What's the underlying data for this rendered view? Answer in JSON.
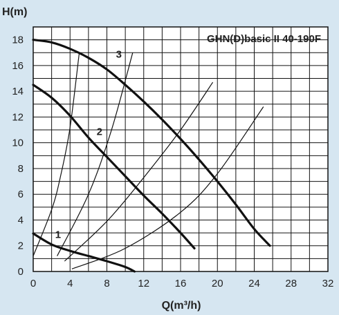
{
  "chart_data": {
    "type": "line",
    "title": "GHN(D)basic II 40-190F",
    "xlabel": "Q(m³/h)",
    "ylabel": "H(m)",
    "xlim": [
      0,
      32
    ],
    "ylim": [
      0,
      19
    ],
    "xticks": [
      0,
      4,
      8,
      12,
      16,
      20,
      24,
      28,
      32
    ],
    "yticks": [
      0,
      2,
      4,
      6,
      8,
      10,
      12,
      14,
      16,
      18
    ],
    "x_minor_step": 2,
    "y_minor_step": 1,
    "grid": true,
    "pump_curves": [
      {
        "label": "1",
        "label_at": [
          2.7,
          2.6
        ],
        "points": [
          [
            0,
            2.95
          ],
          [
            2,
            2.1
          ],
          [
            4,
            1.6
          ],
          [
            6,
            1.2
          ],
          [
            8,
            0.8
          ],
          [
            10,
            0.35
          ],
          [
            11,
            0
          ]
        ]
      },
      {
        "label": "2",
        "label_at": [
          7.2,
          10.6
        ],
        "points": [
          [
            0,
            14.5
          ],
          [
            2,
            13.5
          ],
          [
            4,
            12.1
          ],
          [
            6,
            10.4
          ],
          [
            8,
            8.9
          ],
          [
            10,
            7.4
          ],
          [
            12,
            5.9
          ],
          [
            14,
            4.5
          ],
          [
            16,
            3.0
          ],
          [
            17.5,
            1.8
          ]
        ]
      },
      {
        "label": "3",
        "label_at": [
          9.3,
          16.6
        ],
        "points": [
          [
            0,
            18.0
          ],
          [
            2,
            17.8
          ],
          [
            4,
            17.3
          ],
          [
            6,
            16.6
          ],
          [
            8,
            15.7
          ],
          [
            10,
            14.5
          ],
          [
            12,
            13.2
          ],
          [
            14,
            11.8
          ],
          [
            16,
            10.3
          ],
          [
            18,
            8.7
          ],
          [
            20,
            7.0
          ],
          [
            22,
            5.2
          ],
          [
            24,
            3.3
          ],
          [
            25.7,
            2.0
          ]
        ]
      }
    ],
    "system_curves": [
      {
        "points": [
          [
            0,
            1.2
          ],
          [
            2,
            4.8
          ],
          [
            3,
            7.5
          ],
          [
            4,
            11.2
          ],
          [
            5,
            17.0
          ]
        ]
      },
      {
        "points": [
          [
            2.6,
            1.2
          ],
          [
            6,
            6.0
          ],
          [
            8.5,
            11.0
          ],
          [
            10.8,
            17.0
          ]
        ]
      },
      {
        "points": [
          [
            3.4,
            0.8
          ],
          [
            8,
            3.9
          ],
          [
            12,
            7.3
          ],
          [
            16,
            11.0
          ],
          [
            19.5,
            14.7
          ]
        ]
      },
      {
        "points": [
          [
            4.2,
            0.2
          ],
          [
            10,
            1.8
          ],
          [
            16,
            4.6
          ],
          [
            20,
            7.6
          ],
          [
            25,
            12.8
          ]
        ]
      }
    ]
  }
}
